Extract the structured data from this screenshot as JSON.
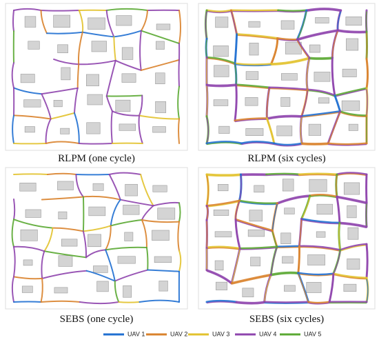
{
  "panels": [
    {
      "caption": "RLPM (one cycle)"
    },
    {
      "caption": "RLPM (six cycles)"
    },
    {
      "caption": "SEBS (one cycle)"
    },
    {
      "caption": "SEBS (six cycles)"
    }
  ],
  "legend": [
    {
      "name": "UAV 1",
      "color": "#1f6fd1"
    },
    {
      "name": "UAV 2",
      "color": "#d9822b"
    },
    {
      "name": "UAV 3",
      "color": "#e2c22c"
    },
    {
      "name": "UAV 4",
      "color": "#8e44ad"
    },
    {
      "name": "UAV 5",
      "color": "#5aa832"
    }
  ]
}
